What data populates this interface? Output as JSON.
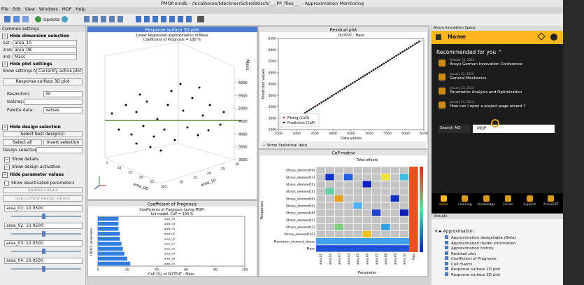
{
  "window_title": "PMOP.omdb - /localhome/tdeckner/Schreibtisch/___PP_files___ - Approximation Monitoring",
  "menu": [
    "File",
    "Edit",
    "View",
    "Windows",
    "MOP",
    "Help"
  ],
  "toolbar": {
    "update": "Update"
  },
  "left_panel": {
    "title": "Common settings",
    "dimension_section": "Hide dimension selection",
    "dimensions": [
      {
        "label": "1st:",
        "value": "area_10"
      },
      {
        "label": "2nd:",
        "value": "area_08"
      },
      {
        "label": "3rd:",
        "value": "Mass"
      }
    ],
    "plot_section": "Hide plot settings",
    "show_settings_label": "Show settings for:",
    "show_settings_value": "Currently active plot",
    "plot_button": "Response surface 3D plot",
    "resolution_label": "Resolution:",
    "resolution_value": "30",
    "isolines_label": "Isolines:",
    "palette_label": "Palette data:",
    "palette_value": "Values",
    "design_section": "Hide design selection",
    "select_best": "Select best design(s)",
    "select_all": "Select all",
    "invert": "Invert selection",
    "design_selection": "Design selection:",
    "show_details": "Show details",
    "show_activation": "Show design activation",
    "parameter_section": "Hide parameter values",
    "show_deactivated": "Show deactivated parameters",
    "update_values": "Update values",
    "use_current": "Use current design values",
    "parameters": [
      "area_01: 10.0500",
      "area_02: 10.0500",
      "area_03: 10.0500",
      "area_04: 10.0500"
    ]
  },
  "plots": {
    "surface3d": {
      "title": "Response surface 3D plot",
      "subtitle": "Linear Regression,approximation of Mass",
      "cop": "Coefficient of Prognosis = 100 %",
      "z_label": "Mass",
      "zlim": [
        3000,
        6000
      ],
      "zticks": [
        3000,
        3500,
        4000,
        4500,
        5000,
        5500,
        6000
      ],
      "x_label": "area_08",
      "y_label": "area_10",
      "xticks": [
        5,
        10,
        15,
        20,
        25,
        30
      ],
      "yticks": [
        5,
        10,
        15,
        20,
        25,
        30
      ]
    },
    "residual": {
      "title": "Residual plot",
      "subtitle": "OUTPUT : Mass",
      "x_label": "Data values",
      "y_label": "Prediction values",
      "xlim": [
        2500,
        6500
      ],
      "ylim": [
        2500,
        6500
      ],
      "xticks": [
        2500,
        3000,
        3500,
        4000,
        4500,
        5000,
        5500,
        6000,
        6500
      ],
      "yticks": [
        2500,
        3000,
        3500,
        4000,
        4500,
        5000,
        5500,
        6000,
        6500
      ],
      "legend": [
        "Fitting (CoD)",
        "Prediction (CoP)"
      ],
      "button": "Show Statistical data"
    },
    "cop": {
      "title": "Coefficient of Prognosis",
      "subtitle": "Coefficients of Prognosis (using MOP)",
      "model": "full model: CoP = 100 %",
      "x_label": "CoP [%] of OUTPUT : Mass",
      "y_label": "INPUT: parameter",
      "categories": [
        "area_06",
        "area_09",
        "area_05",
        "area_02",
        "area_03",
        "area_07",
        "area_01",
        "area_04",
        "area_08",
        "area_10"
      ],
      "values": [
        14,
        14,
        14,
        15,
        15,
        16,
        17,
        18,
        20,
        22
      ],
      "color": "#2f7de0",
      "xlim": [
        0,
        100
      ],
      "xticks": [
        0,
        20,
        40,
        60,
        80,
        100
      ]
    },
    "matrix": {
      "title": "CoP matrix",
      "subtitle": "Total effects",
      "rows": [
        "Stress_element[9]",
        "Stress_element[7]",
        "Stress_element[5]",
        "Stress_element[1]",
        "Stress_element[6]",
        "Stress_element[4]",
        "Stress_element[8]",
        "Stress_element[2]",
        "Stress_element[3]",
        "Stress_element[10]",
        "Maximum_element_stress",
        "Mass"
      ],
      "columns": [
        "area_01",
        "area_02",
        "area_03",
        "area_04",
        "area_05",
        "area_06",
        "area_07",
        "area_08",
        "area_09",
        "area_10",
        "Total"
      ],
      "x_label": "Parameter",
      "y_label": "Responses"
    }
  },
  "ansys": {
    "header": "Ansys Innovation Space",
    "home": "Home",
    "recommended": "Recommended for you",
    "items": [
      {
        "date": "October 24, 2024",
        "title": "Ansys German Innovation Conference"
      },
      {
        "date": "January 22, 2024",
        "title": "General Mechanics"
      },
      {
        "date": "January 23, 2024",
        "title": "Parametric Analysis and Optimization"
      },
      {
        "date": "January 15, 2024",
        "title": "How can I open a project page wizard ?"
      }
    ],
    "search_label": "Search AIS",
    "search_value": "MOP",
    "nav": [
      "Home",
      "Learning",
      "Knowledge",
      "Forum",
      "Support",
      "AnsysGPT"
    ]
  },
  "visuals": {
    "title": "Visuals",
    "root": "Approximation",
    "items": [
      "Approximation designtable (Beta)",
      "Approximation model information",
      "Approximation history",
      "Residual plot",
      "Coefficient of Prognosis",
      "CoP matrix",
      "Response surface 2D plot",
      "Response surface 3D plot"
    ]
  }
}
